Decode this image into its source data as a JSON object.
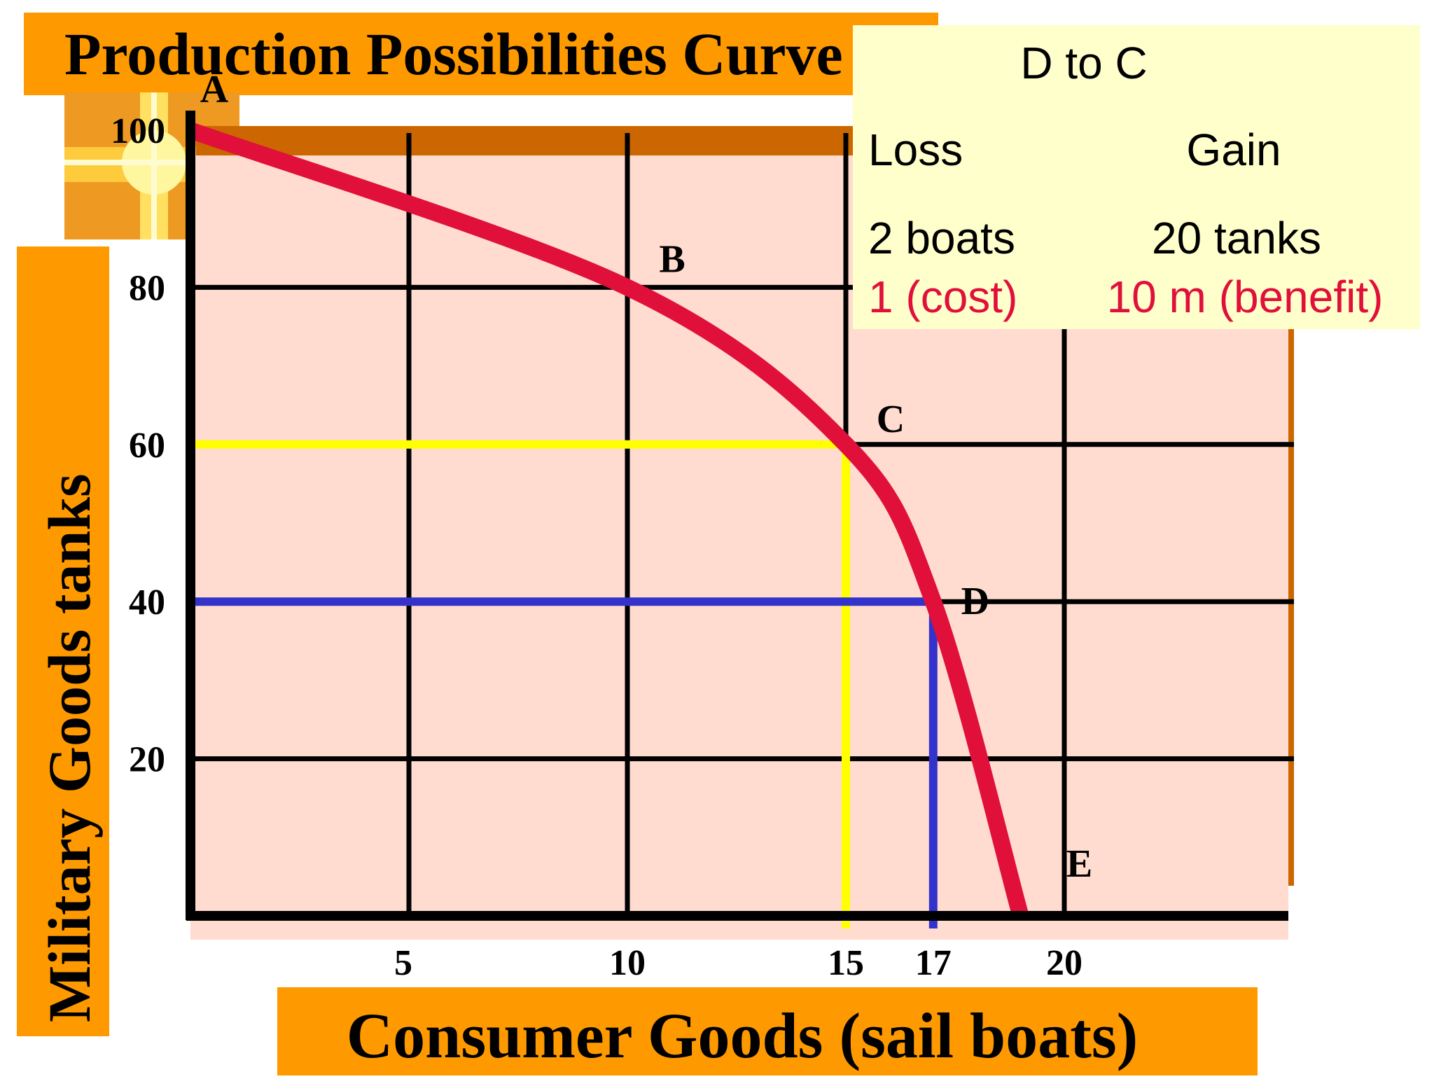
{
  "colors": {
    "banner": "#ff9900",
    "plot_bg": "#ffdccf",
    "plot_shadow": "#cc6600",
    "curve": "#e0103a",
    "yellow_line": "#ffff00",
    "blue_line": "#3333cc",
    "info_bg": "#ffffcc",
    "red_text": "#e0103a"
  },
  "icons": {
    "logo": "cross-light-logo-icon"
  },
  "chart_data": {
    "type": "line",
    "title": "Production Possibilities Curve",
    "xlabel": "Consumer Goods (sail boats)",
    "ylabel": "Military Goods tanks",
    "xlim": [
      0,
      24
    ],
    "ylim": [
      0,
      104
    ],
    "x_ticks": [
      5,
      10,
      15,
      17,
      20
    ],
    "y_ticks": [
      20,
      40,
      60,
      80,
      100
    ],
    "series": [
      {
        "points": [
          {
            "label": "A",
            "x": 0,
            "y": 100
          },
          {
            "label": "B",
            "x": 10,
            "y": 80
          },
          {
            "label": "C",
            "x": 15,
            "y": 60
          },
          {
            "label": "D",
            "x": 17,
            "y": 40
          },
          {
            "label": "E",
            "x": 19,
            "y": 0
          }
        ]
      }
    ],
    "guides": [
      {
        "type": "yellow",
        "x": 15,
        "y": 60
      },
      {
        "type": "blue",
        "x": 17,
        "y": 40
      }
    ]
  },
  "info_box": {
    "title": "D to C",
    "loss_header": "Loss",
    "gain_header": "Gain",
    "loss_value": "2 boats",
    "gain_value": "20 tanks",
    "loss_note": "1 (cost)",
    "gain_note": "10 m (benefit)"
  }
}
